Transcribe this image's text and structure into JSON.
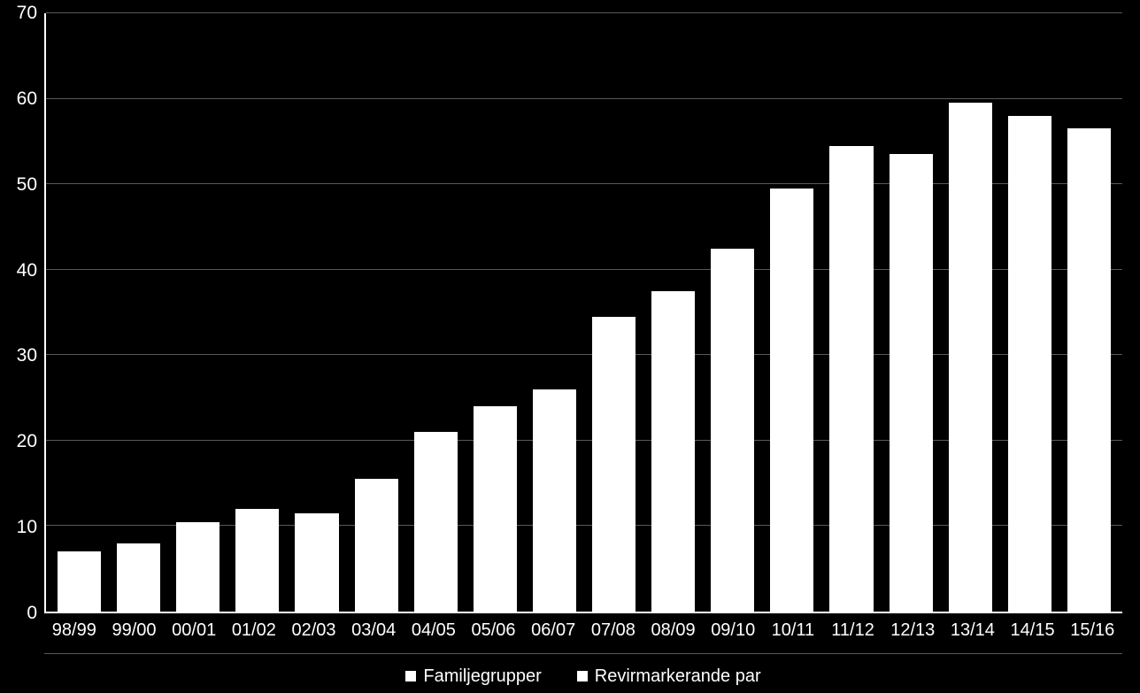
{
  "chart": {
    "type": "bar",
    "background_color": "#000000",
    "text_color": "#ffffff",
    "axis_color": "#ffffff",
    "grid_color": "#595959",
    "tick_fontsize": 21,
    "xlabel_fontsize": 20,
    "legend_fontsize": 20,
    "ylim": [
      0,
      70
    ],
    "ytick_step": 10,
    "yticks": [
      0,
      10,
      20,
      30,
      40,
      50,
      60,
      70
    ],
    "categories": [
      "98/99",
      "99/00",
      "00/01",
      "01/02",
      "02/03",
      "03/04",
      "04/05",
      "05/06",
      "06/07",
      "07/08",
      "08/09",
      "09/10",
      "10/11",
      "11/12",
      "12/13",
      "13/14",
      "14/15",
      "15/16"
    ],
    "series": [
      {
        "name": "Familjegrupper",
        "color": "#ffffff",
        "values": [
          7,
          8,
          10.5,
          12,
          11.5,
          15.5,
          21,
          24,
          26,
          34.5,
          37.5,
          42.5,
          49.5,
          54.5,
          53.5,
          59.5,
          58,
          56.5
        ]
      },
      {
        "name": "Revirmarkerande par",
        "color": "#ffffff",
        "values": [
          7,
          8,
          10.5,
          12,
          11.5,
          15.5,
          21,
          24,
          26,
          34.5,
          37.5,
          42.5,
          49.5,
          54.5,
          53.5,
          59.5,
          58,
          56.5
        ]
      }
    ],
    "bar_border_color": "#000000",
    "bar_border_width": 0,
    "legend_border_color": "#595959",
    "legend_swatch_color": "#ffffff"
  }
}
